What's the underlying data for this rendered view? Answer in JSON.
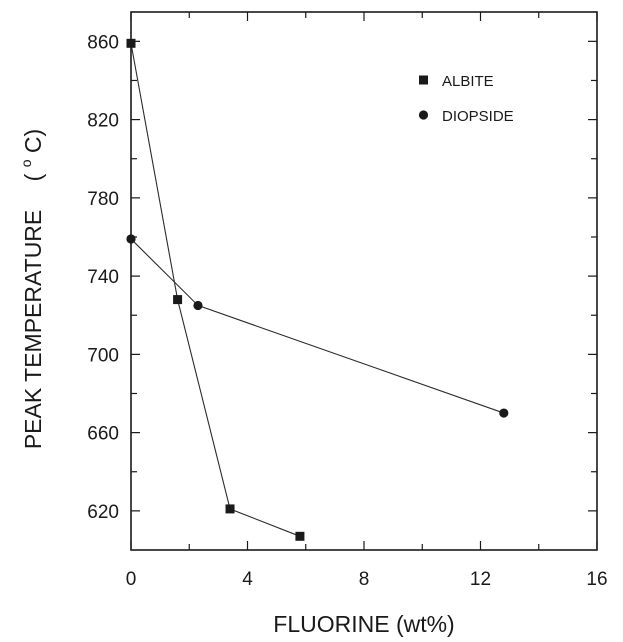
{
  "chart_data": {
    "type": "line",
    "xlabel": "FLUORINE  (wt%)",
    "ylabel_main": "PEAK TEMPERATURE",
    "ylabel_unit_open": "(",
    "ylabel_unit_deg": "o",
    "ylabel_unit_rest": "C)",
    "xlim": [
      0,
      16
    ],
    "ylim": [
      600,
      875
    ],
    "xticks": [
      0,
      4,
      8,
      12,
      16
    ],
    "yticks": [
      620,
      660,
      700,
      740,
      780,
      820,
      860
    ],
    "legend_position": "top-right",
    "series": [
      {
        "name": "ALBITE",
        "marker": "square",
        "x": [
          0.0,
          1.6,
          3.4,
          5.8
        ],
        "y": [
          859,
          728,
          621,
          607
        ]
      },
      {
        "name": "DIOPSIDE",
        "marker": "circle",
        "x": [
          0.0,
          2.3,
          12.8
        ],
        "y": [
          759,
          725,
          670
        ]
      }
    ],
    "colors": {
      "ink": "#1a1a1a",
      "line": "#2b2b2b"
    }
  }
}
